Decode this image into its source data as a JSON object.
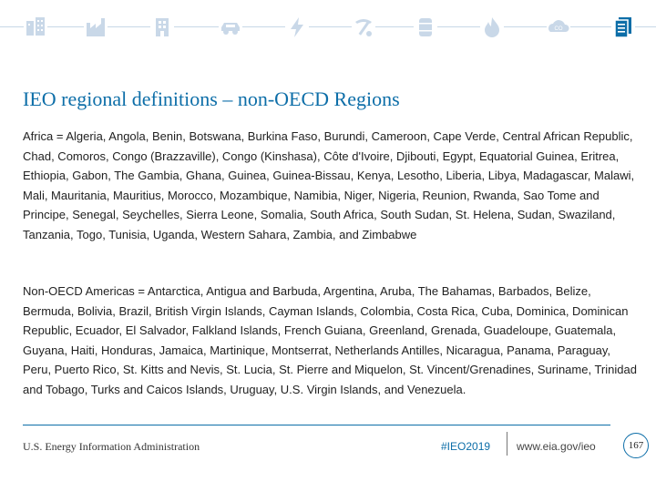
{
  "header": {
    "icons": [
      {
        "name": "buildings-icon",
        "color": "#c9d8e8"
      },
      {
        "name": "industry-icon",
        "color": "#c9d8e8"
      },
      {
        "name": "residential-building-icon",
        "color": "#c9d8e8"
      },
      {
        "name": "car-icon",
        "color": "#c9d8e8"
      },
      {
        "name": "electricity-icon",
        "color": "#c9d8e8"
      },
      {
        "name": "coal-mining-icon",
        "color": "#c9d8e8"
      },
      {
        "name": "oil-barrel-icon",
        "color": "#c9d8e8"
      },
      {
        "name": "natural-gas-flame-icon",
        "color": "#c9d8e8"
      },
      {
        "name": "co2-emissions-icon",
        "color": "#c9d8e8"
      },
      {
        "name": "document-icon",
        "color": "#0d6ea8"
      }
    ]
  },
  "slide": {
    "title": "IEO regional definitions – non-OECD Regions",
    "paragraphs": [
      "Africa = Algeria, Angola, Benin, Botswana, Burkina Faso, Burundi, Cameroon, Cape Verde, Central African Republic, Chad, Comoros, Congo (Brazzaville), Congo (Kinshasa), Côte d'Ivoire, Djibouti, Egypt, Equatorial Guinea, Eritrea, Ethiopia, Gabon, The Gambia, Ghana, Guinea, Guinea-Bissau, Kenya, Lesotho, Liberia, Libya, Madagascar, Malawi, Mali, Mauritania, Mauritius, Morocco, Mozambique, Namibia, Niger, Nigeria, Reunion, Rwanda, Sao Tome and Principe, Senegal, Seychelles, Sierra Leone, Somalia, South Africa, South Sudan, St. Helena, Sudan, Swaziland, Tanzania, Togo, Tunisia, Uganda, Western Sahara, Zambia, and Zimbabwe",
      "Non-OECD Americas = Antarctica, Antigua and Barbuda, Argentina, Aruba, The Bahamas, Barbados, Belize, Bermuda, Bolivia, Brazil, British Virgin Islands, Cayman Islands, Colombia, Costa Rica, Cuba, Dominica, Dominican Republic, Ecuador, El Salvador, Falkland Islands, French Guiana, Greenland, Grenada, Guadeloupe, Guatemala, Guyana, Haiti, Honduras, Jamaica, Martinique, Montserrat, Netherlands Antilles, Nicaragua, Panama, Paraguay, Peru, Puerto Rico, St. Kitts and Nevis, St. Lucia, St. Pierre and Miquelon, St. Vincent/Grenadines, Suriname, Trinidad and Tobago, Turks and Caicos Islands, Uruguay, U.S. Virgin Islands, and Venezuela."
    ]
  },
  "footer": {
    "organization": "U.S. Energy Information Administration",
    "hashtag": "#IEO2019",
    "url": "www.eia.gov/ieo",
    "page_number": "167",
    "accent_color": "#0d6ea8"
  }
}
